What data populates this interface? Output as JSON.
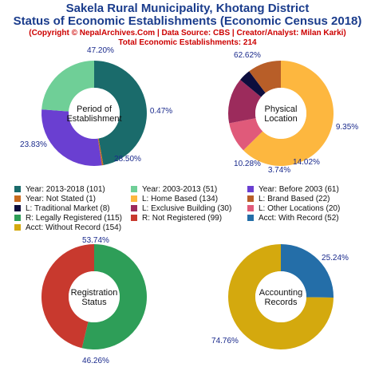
{
  "header": {
    "title_line1": "Sakela Rural Municipality, Khotang District",
    "title_line2": "Status of Economic Establishments (Economic Census 2018)",
    "source": "(Copyright © NepalArchives.Com | Data Source: CBS | Creator/Analyst: Milan Karki)",
    "total": "Total Economic Establishments: 214"
  },
  "chart_data": [
    {
      "type": "pie",
      "center_label": [
        "Period of",
        "Establishment"
      ],
      "slices": [
        {
          "label": "Year: 2013-2018",
          "value": 101,
          "pct": "47.20%",
          "color": "#1a6b6b"
        },
        {
          "label": "Year: Not Stated",
          "value": 1,
          "pct": "0.47%",
          "color": "#c86a1e"
        },
        {
          "label": "Year: Before 2003",
          "value": 61,
          "pct": "28.50%",
          "color": "#6a3fd1"
        },
        {
          "label": "Year: 2003-2013",
          "value": 51,
          "pct": "23.83%",
          "color": "#6fcf97"
        }
      ]
    },
    {
      "type": "pie",
      "center_label": [
        "Physical",
        "Location"
      ],
      "slices": [
        {
          "label": "L: Home Based",
          "value": 134,
          "pct": "62.62%",
          "color": "#fdb73f"
        },
        {
          "label": "L: Other Locations",
          "value": 20,
          "pct": "9.35%",
          "color": "#e05a7a"
        },
        {
          "label": "L: Exclusive Building",
          "value": 30,
          "pct": "14.02%",
          "color": "#9c2b5c"
        },
        {
          "label": "L: Traditional Market",
          "value": 8,
          "pct": "3.74%",
          "color": "#0d0d3d"
        },
        {
          "label": "L: Brand Based",
          "value": 22,
          "pct": "10.28%",
          "color": "#b85e28"
        }
      ]
    },
    {
      "type": "pie",
      "center_label": [
        "Registration",
        "Status"
      ],
      "slices": [
        {
          "label": "R: Legally Registered",
          "value": 115,
          "pct": "53.74%",
          "color": "#2e9e58"
        },
        {
          "label": "R: Not Registered",
          "value": 99,
          "pct": "46.26%",
          "color": "#c8392e"
        }
      ]
    },
    {
      "type": "pie",
      "center_label": [
        "Accounting",
        "Records"
      ],
      "slices": [
        {
          "label": "Acct: With Record",
          "value": 52,
          "pct": "25.24%",
          "color": "#246ea8"
        },
        {
          "label": "Acct: Without Record",
          "value": 154,
          "pct": "74.76%",
          "color": "#d4a90e"
        }
      ]
    }
  ],
  "legend": [
    {
      "label": "Year: 2013-2018 (101)",
      "color": "#1a6b6b"
    },
    {
      "label": "Year: 2003-2013 (51)",
      "color": "#6fcf97"
    },
    {
      "label": "Year: Before 2003 (61)",
      "color": "#6a3fd1"
    },
    {
      "label": "Year: Not Stated (1)",
      "color": "#c86a1e"
    },
    {
      "label": "L: Home Based (134)",
      "color": "#fdb73f"
    },
    {
      "label": "L: Brand Based (22)",
      "color": "#b85e28"
    },
    {
      "label": "L: Traditional Market (8)",
      "color": "#0d0d3d"
    },
    {
      "label": "L: Exclusive Building (30)",
      "color": "#9c2b5c"
    },
    {
      "label": "L: Other Locations (20)",
      "color": "#e05a7a"
    },
    {
      "label": "R: Legally Registered (115)",
      "color": "#2e9e58"
    },
    {
      "label": "R: Not Registered (99)",
      "color": "#c8392e"
    },
    {
      "label": "Acct: With Record (52)",
      "color": "#246ea8"
    },
    {
      "label": "Acct: Without Record (154)",
      "color": "#d4a90e"
    }
  ]
}
